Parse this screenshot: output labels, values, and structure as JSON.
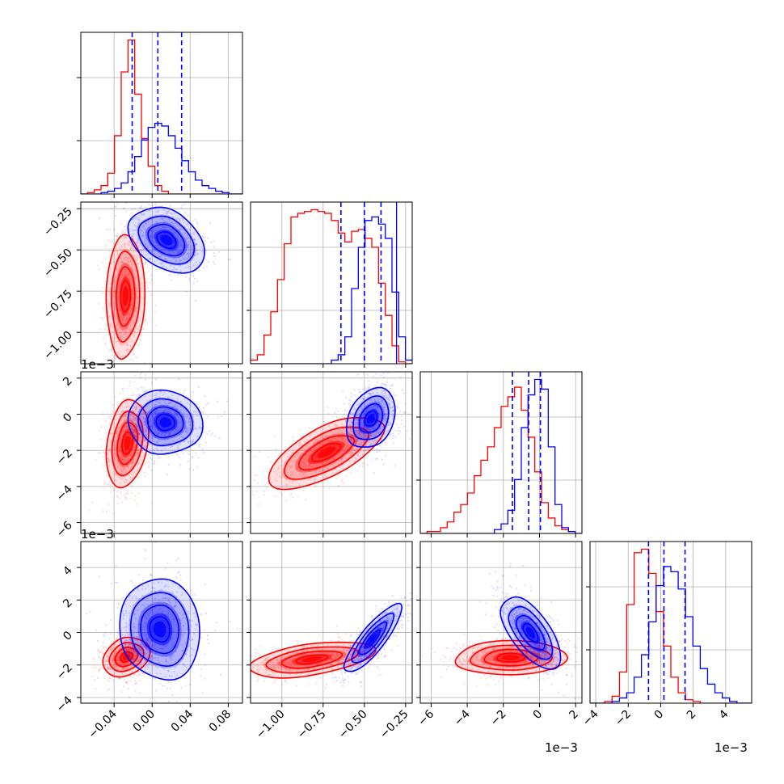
{
  "chart_data": {
    "type": "corner",
    "parameters": 4,
    "grid": true,
    "series": [
      {
        "name": "",
        "color": "#0000ff"
      },
      {
        "name": "",
        "color": "#ff0000"
      }
    ],
    "quantile_lines_color": "#0000ff",
    "offset_labels": {
      "y_row1": "1e−3",
      "y_row2": "1e−3",
      "x_col2": "1e−3",
      "x_col3": "1e−3"
    },
    "axes": {
      "p0": {
        "range": [
          -0.075,
          0.095
        ],
        "ticks": [
          -0.04,
          0.0,
          0.04,
          0.08
        ],
        "tick_labels": [
          "−0.04",
          "0.00",
          "0.04",
          "0.08"
        ]
      },
      "p1": {
        "range": [
          -1.19,
          -0.21
        ],
        "ticks_x": [
          -1.0,
          -0.75,
          -0.5,
          -0.25
        ],
        "tick_labels_x": [
          "−1.00",
          "−0.75",
          "−0.50",
          "−0.25"
        ],
        "ticks_y": [
          -1.0,
          -0.75,
          -0.5,
          -0.25
        ],
        "tick_labels_y": [
          "−1.00",
          "−0.75",
          "−0.50",
          "−0.25"
        ]
      },
      "p2": {
        "range": [
          -6.6,
          2.35
        ],
        "ticks": [
          -6,
          -4,
          -2,
          0,
          2
        ],
        "tick_labels": [
          "−6",
          "−4",
          "−2",
          "0",
          "2"
        ]
      },
      "p3": {
        "range": [
          -4.35,
          5.6
        ],
        "ticks": [
          -4,
          -2,
          0,
          2,
          4
        ],
        "tick_labels": [
          "−4",
          "−2",
          "0",
          "2",
          "4"
        ]
      }
    },
    "marginals": {
      "p0": {
        "edges": [
          -0.075,
          0.095
        ],
        "blue": [
          0,
          0,
          0,
          1,
          2,
          4,
          8,
          16,
          27,
          39,
          48,
          51,
          49,
          42,
          33,
          24,
          16,
          10,
          6,
          4,
          2,
          1,
          0,
          0
        ],
        "red": [
          0,
          1,
          3,
          6,
          15,
          42,
          88,
          111,
          72,
          40,
          20,
          6,
          2,
          0,
          0,
          0,
          0,
          0,
          0,
          0,
          0,
          0,
          0,
          0
        ],
        "quantiles": [
          -0.021,
          0.006,
          0.031
        ]
      },
      "p1": {
        "edges": [
          -1.19,
          -0.21
        ],
        "blue": [
          0,
          0,
          0,
          0,
          0,
          0,
          0,
          0,
          0,
          0,
          0,
          0,
          2,
          5,
          15,
          42,
          65,
          80,
          82,
          78,
          70,
          40,
          15,
          2
        ],
        "red": [
          2,
          5,
          16,
          29,
          47,
          67,
          82,
          84,
          85,
          86,
          85,
          84,
          80,
          73,
          68,
          74,
          75,
          70,
          65,
          45,
          27,
          10,
          1,
          0
        ],
        "quantiles": [
          -0.642,
          -0.5,
          -0.399
        ],
        "extra_line": -0.305
      },
      "p2": {
        "edges": [
          -6.6,
          2.35
        ],
        "blue": [
          0,
          0,
          0,
          0,
          0,
          0,
          0,
          0,
          0,
          0,
          0,
          2,
          5,
          12,
          28,
          55,
          72,
          80,
          75,
          45,
          15,
          3,
          1,
          0
        ],
        "red": [
          0,
          1,
          1,
          3,
          6,
          11,
          15,
          21,
          30,
          38,
          45,
          55,
          66,
          71,
          76,
          64,
          50,
          32,
          16,
          8,
          4,
          2,
          1,
          0
        ],
        "quantiles": [
          -1.5,
          -0.6,
          0.05
        ]
      },
      "p3": {
        "edges": [
          -4.35,
          5.6
        ],
        "blue": [
          0,
          0,
          0,
          1,
          3,
          6,
          15,
          28,
          47,
          68,
          79,
          76,
          66,
          50,
          33,
          20,
          11,
          6,
          3,
          1,
          0,
          0
        ],
        "red": [
          0,
          0,
          1,
          4,
          18,
          57,
          87,
          89,
          75,
          53,
          33,
          15,
          6,
          2,
          1,
          0,
          0,
          0,
          0,
          0,
          0,
          0
        ],
        "quantiles": [
          -0.75,
          0.2,
          1.5
        ]
      }
    },
    "pairs": [
      {
        "x": "p0",
        "y": "p1",
        "blue": {
          "center": [
            0.015,
            -0.44
          ],
          "spread": [
            0.018,
            0.09
          ],
          "corr": -0.3
        },
        "red": {
          "center": [
            -0.028,
            -0.78
          ],
          "spread": [
            0.009,
            0.17
          ],
          "corr": 0.1
        }
      },
      {
        "x": "p0",
        "y": "p2",
        "blue": {
          "center": [
            0.014,
            -0.45
          ],
          "spread": [
            0.018,
            0.8
          ],
          "corr": 0.0
        },
        "red": {
          "center": [
            -0.026,
            -1.6
          ],
          "spread": [
            0.01,
            1.1
          ],
          "corr": 0.2
        }
      },
      {
        "x": "p1",
        "y": "p2",
        "blue": {
          "center": [
            -0.46,
            -0.25
          ],
          "spread": [
            0.07,
            0.75
          ],
          "corr": 0.3
        },
        "red": {
          "center": [
            -0.73,
            -2.1
          ],
          "spread": [
            0.16,
            0.9
          ],
          "corr": 0.65
        }
      },
      {
        "x": "p0",
        "y": "p3",
        "blue": {
          "center": [
            0.008,
            0.2
          ],
          "spread": [
            0.02,
            1.4
          ],
          "corr": -0.1
        },
        "red": {
          "center": [
            -0.027,
            -1.5
          ],
          "spread": [
            0.011,
            0.55
          ],
          "corr": 0.2
        }
      },
      {
        "x": "p1",
        "y": "p3",
        "blue": {
          "center": [
            -0.45,
            -0.4
          ],
          "spread": [
            0.08,
            0.95
          ],
          "corr": 0.85
        },
        "red": {
          "center": [
            -0.82,
            -1.65
          ],
          "spread": [
            0.17,
            0.5
          ],
          "corr": 0.45
        }
      },
      {
        "x": "p2",
        "y": "p3",
        "blue": {
          "center": [
            -0.5,
            0.0
          ],
          "spread": [
            0.75,
            1.0
          ],
          "corr": -0.6
        },
        "red": {
          "center": [
            -1.6,
            -1.55
          ],
          "spread": [
            1.4,
            0.48
          ],
          "corr": 0.1
        }
      }
    ]
  }
}
